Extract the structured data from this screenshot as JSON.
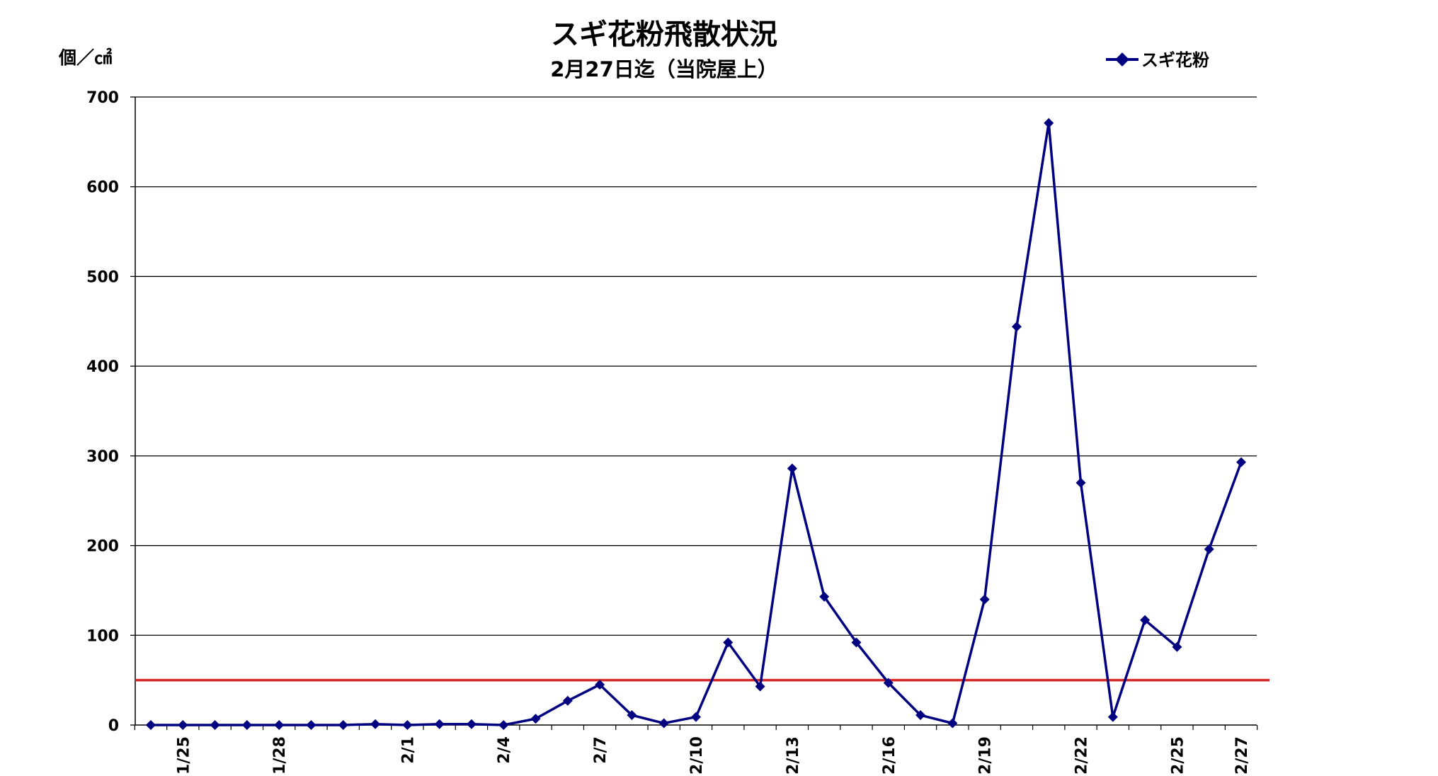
{
  "chart_data": {
    "type": "line",
    "title": "スギ花粉飛散状況",
    "subtitle": "2月27日迄（当院屋上）",
    "ylabel": "個／㎠",
    "xlabel": "",
    "ylim": [
      0,
      700
    ],
    "yticks": [
      0,
      100,
      200,
      300,
      400,
      500,
      600,
      700
    ],
    "grid": true,
    "legend_position": "top-right",
    "colors": {
      "series": "#000080",
      "reference_line": "#D62828",
      "grid": "#000000"
    },
    "x": [
      "1/24",
      "1/25",
      "1/26",
      "1/27",
      "1/28",
      "1/29",
      "1/30",
      "1/31",
      "2/1",
      "2/2",
      "2/3",
      "2/4",
      "2/5",
      "2/6",
      "2/7",
      "2/8",
      "2/9",
      "2/10",
      "2/11",
      "2/12",
      "2/13",
      "2/14",
      "2/15",
      "2/16",
      "2/17",
      "2/18",
      "2/19",
      "2/20",
      "2/21",
      "2/22",
      "2/23",
      "2/24",
      "2/25",
      "2/26",
      "2/27"
    ],
    "x_tick_labels": [
      "1/25",
      "1/28",
      "2/1",
      "2/4",
      "2/7",
      "2/10",
      "2/13",
      "2/16",
      "2/19",
      "2/22",
      "2/25",
      "2/27"
    ],
    "series": [
      {
        "name": "スギ花粉",
        "marker": "diamond",
        "values": [
          0,
          0,
          0,
          0,
          0,
          0,
          0,
          1,
          0,
          1,
          1,
          0,
          7,
          27,
          45,
          11,
          2,
          9,
          92,
          43,
          286,
          143,
          92,
          47,
          11,
          2,
          140,
          444,
          671,
          270,
          9,
          117,
          87,
          196,
          293
        ]
      }
    ],
    "reference_line": {
      "value": 50
    }
  }
}
